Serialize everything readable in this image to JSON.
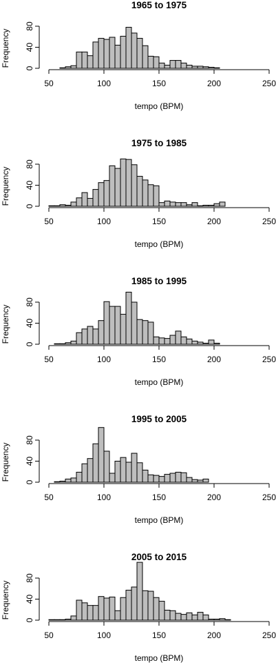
{
  "chart_data": [
    {
      "type": "bar",
      "title": "1965 to 1975",
      "xlabel": "tempo (BPM)",
      "ylabel": "Frequency",
      "xlim": [
        50,
        250
      ],
      "x_ticks": [
        50,
        100,
        150,
        200,
        250
      ],
      "y_ticks": [
        0,
        40,
        80
      ],
      "bin_width": 5,
      "bin_start": 60,
      "values": [
        1,
        3,
        5,
        31,
        31,
        24,
        50,
        57,
        55,
        59,
        44,
        61,
        78,
        67,
        57,
        43,
        23,
        22,
        10,
        6,
        15,
        15,
        10,
        6,
        4,
        4,
        3,
        2,
        1,
        0
      ]
    },
    {
      "type": "bar",
      "title": "1975 to 1985",
      "xlabel": "tempo (BPM)",
      "ylabel": "Frequency",
      "xlim": [
        50,
        250
      ],
      "x_ticks": [
        50,
        100,
        150,
        200,
        250
      ],
      "y_ticks": [
        0,
        40,
        80
      ],
      "bin_width": 5,
      "bin_start": 50,
      "values": [
        1,
        1,
        3,
        2,
        8,
        16,
        26,
        15,
        32,
        45,
        49,
        77,
        72,
        90,
        89,
        79,
        57,
        50,
        41,
        39,
        7,
        10,
        8,
        7,
        7,
        3,
        7,
        1,
        2,
        2,
        5,
        8
      ]
    },
    {
      "type": "bar",
      "title": "1985 to 1995",
      "xlabel": "tempo (BPM)",
      "ylabel": "Frequency",
      "xlim": [
        50,
        250
      ],
      "x_ticks": [
        50,
        100,
        150,
        200,
        250
      ],
      "y_ticks": [
        0,
        40,
        80
      ],
      "bin_width": 5,
      "bin_start": 55,
      "values": [
        1,
        1,
        3,
        6,
        22,
        29,
        34,
        29,
        45,
        81,
        72,
        72,
        57,
        99,
        80,
        47,
        45,
        42,
        14,
        12,
        11,
        17,
        25,
        14,
        10,
        6,
        4,
        2,
        8,
        2
      ]
    },
    {
      "type": "bar",
      "title": "1995 to 2005",
      "xlabel": "tempo (BPM)",
      "ylabel": "Frequency",
      "xlim": [
        50,
        250
      ],
      "x_ticks": [
        50,
        100,
        150,
        200,
        250
      ],
      "y_ticks": [
        0,
        40,
        80
      ],
      "bin_width": 5,
      "bin_start": 55,
      "values": [
        1,
        2,
        6,
        8,
        19,
        35,
        45,
        73,
        104,
        59,
        17,
        40,
        47,
        38,
        55,
        37,
        23,
        14,
        13,
        11,
        15,
        17,
        19,
        18,
        9,
        5,
        4,
        6
      ]
    },
    {
      "type": "bar",
      "title": "2005 to 2015",
      "xlabel": "tempo (BPM)",
      "ylabel": "Frequency",
      "xlim": [
        50,
        250
      ],
      "x_ticks": [
        50,
        100,
        150,
        200,
        250
      ],
      "y_ticks": [
        0,
        40,
        80
      ],
      "bin_width": 5,
      "bin_start": 50,
      "values": [
        1,
        1,
        1,
        2,
        8,
        38,
        33,
        28,
        28,
        45,
        42,
        44,
        18,
        43,
        57,
        63,
        110,
        56,
        55,
        43,
        36,
        19,
        18,
        13,
        11,
        14,
        10,
        15,
        10,
        2,
        2,
        3,
        1
      ]
    }
  ]
}
